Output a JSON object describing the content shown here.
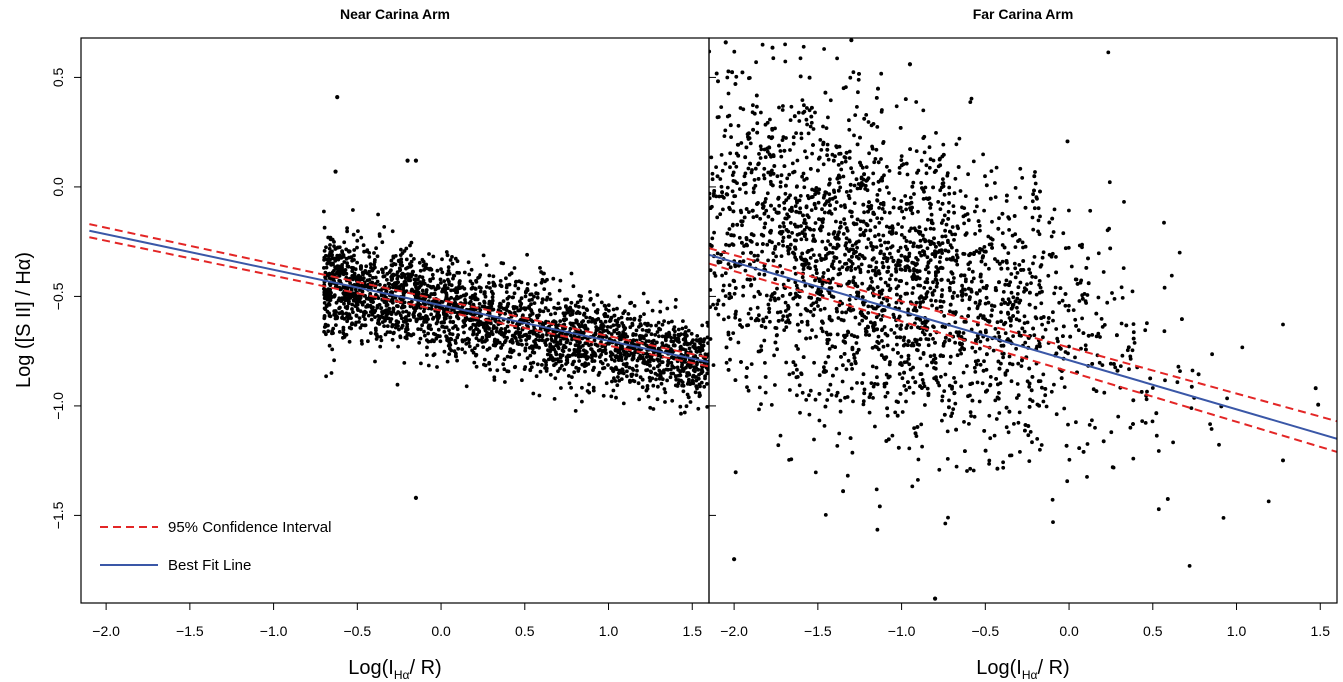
{
  "chart_data": [
    {
      "type": "scatter",
      "title": "Near Carina Arm",
      "xlabel": "Log(I_Hα/ R)",
      "ylabel": "Log ([S II] / Hα)",
      "xlim": [
        -2.15,
        1.6
      ],
      "ylim": [
        -1.9,
        0.68
      ],
      "xticks": [
        "−2.0",
        "−1.5",
        "−1.0",
        "−0.5",
        "0.0",
        "0.5",
        "1.0",
        "1.5"
      ],
      "xtick_values": [
        -2.0,
        -1.5,
        -1.0,
        -0.5,
        0.0,
        0.5,
        1.0,
        1.5
      ],
      "yticks": [
        "−1.5",
        "−1.0",
        "−0.5",
        "0.0",
        "0.5"
      ],
      "ytick_values": [
        -1.5,
        -1.0,
        -0.5,
        0.0,
        0.5
      ],
      "grid": false,
      "legend": {
        "placement": "bottom-left",
        "entries": [
          {
            "label": "95% Confidence Interval",
            "style": "dashed",
            "color": "#e32626"
          },
          {
            "label": "Best Fit Line",
            "style": "solid",
            "color": "#3a57a7"
          }
        ]
      },
      "best_fit": {
        "points": [
          [
            -2.1,
            -0.2
          ],
          [
            1.6,
            -0.8
          ]
        ],
        "color": "#3a57a7"
      },
      "ci_upper": {
        "points": [
          [
            -2.1,
            -0.17
          ],
          [
            1.6,
            -0.78
          ]
        ],
        "color": "#e32626"
      },
      "ci_lower": {
        "points": [
          [
            -2.1,
            -0.23
          ],
          [
            1.6,
            -0.82
          ]
        ],
        "color": "#e32626"
      },
      "point_cloud": {
        "x_range": [
          -0.7,
          1.6
        ],
        "y_center_line": [
          [
            -0.65,
            -0.45
          ],
          [
            1.5,
            -0.8
          ]
        ],
        "y_spread": 0.22,
        "approx_count": 2600
      },
      "outliers": [
        [
          -0.62,
          0.41
        ],
        [
          -0.63,
          0.07
        ],
        [
          -0.2,
          0.12
        ],
        [
          -0.15,
          0.12
        ],
        [
          -0.15,
          -1.42
        ]
      ]
    },
    {
      "type": "scatter",
      "title": "Far Carina Arm",
      "xlabel": "Log(I_Hα/ R)",
      "ylabel": "",
      "xlim": [
        -2.15,
        1.6
      ],
      "ylim": [
        -1.9,
        0.68
      ],
      "xticks": [
        "−2.0",
        "−1.5",
        "−1.0",
        "−0.5",
        "0.0",
        "0.5",
        "1.0",
        "1.5"
      ],
      "xtick_values": [
        -2.0,
        -1.5,
        -1.0,
        -0.5,
        0.0,
        0.5,
        1.0,
        1.5
      ],
      "yticks": [
        "−1.5",
        "−1.0",
        "−0.5",
        "0.0",
        "0.5"
      ],
      "ytick_values": [
        -1.5,
        -1.0,
        -0.5,
        0.0,
        0.5
      ],
      "grid": false,
      "best_fit": {
        "points": [
          [
            -2.15,
            -0.31
          ],
          [
            1.6,
            -1.15
          ]
        ],
        "color": "#3a57a7"
      },
      "ci_upper": {
        "points": [
          [
            -2.15,
            -0.28
          ],
          [
            1.6,
            -1.07
          ]
        ],
        "color": "#e32626"
      },
      "ci_lower": {
        "points": [
          [
            -2.15,
            -0.35
          ],
          [
            1.6,
            -1.21
          ]
        ],
        "color": "#e32626"
      },
      "point_cloud": {
        "x_range": [
          -2.15,
          1.5
        ],
        "y_center_line": [
          [
            -1.5,
            -0.3
          ],
          [
            1.0,
            -0.9
          ]
        ],
        "y_spread": 0.45,
        "approx_count": 3000
      },
      "outliers": [
        [
          -2.05,
          0.66
        ],
        [
          -1.3,
          0.67
        ],
        [
          -0.95,
          0.56
        ],
        [
          -2.0,
          -1.7
        ],
        [
          -0.8,
          -1.88
        ]
      ]
    }
  ],
  "xlabel_main": "Log(I",
  "xlabel_sub": "Hα",
  "xlabel_tail": "/ R)",
  "ylabel_main": "Log ([S II] / Hα)"
}
